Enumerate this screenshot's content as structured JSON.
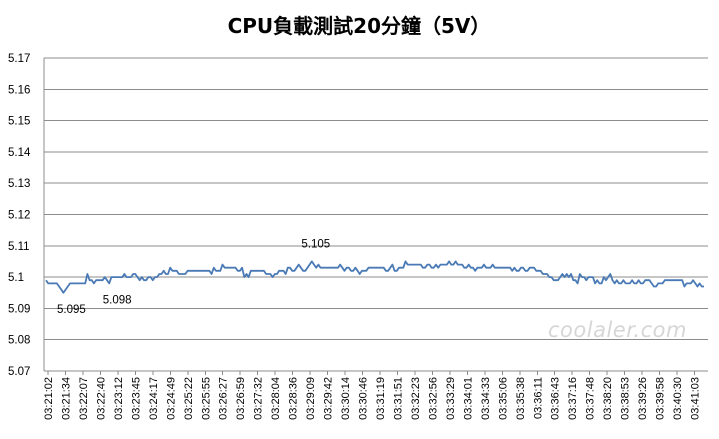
{
  "chart_data": {
    "type": "line",
    "title": "CPU負載測試20分鐘（5V）",
    "xlabel": "",
    "ylabel": "",
    "ylim": [
      5.07,
      5.17
    ],
    "yticks": [
      "5.07",
      "5.08",
      "5.09",
      "5.1",
      "5.11",
      "5.12",
      "5.13",
      "5.14",
      "5.15",
      "5.16",
      "5.17"
    ],
    "grid": "horizontal",
    "legend": "none",
    "line_color": "#4a7ab5",
    "x_tick_labels": [
      "03:21:02",
      "03:21:34",
      "03:22:07",
      "03:22:40",
      "03:23:12",
      "03:23:45",
      "03:24:17",
      "03:24:49",
      "03:25:22",
      "03:25:55",
      "03:26:27",
      "03:26:59",
      "03:27:32",
      "03:28:04",
      "03:28:36",
      "03:29:09",
      "03:29:42",
      "03:30:14",
      "03:30:46",
      "03:31:19",
      "03:31:51",
      "03:32:23",
      "03:32:56",
      "03:33:29",
      "03:34:01",
      "03:34:33",
      "03:35:06",
      "03:35:38",
      "03:36:11",
      "03:36:43",
      "03:37:16",
      "03:37:48",
      "03:38:20",
      "03:38:53",
      "03:39:26",
      "03:39:58",
      "03:40:30",
      "03:41:03"
    ],
    "annotations": [
      {
        "text": "5.095",
        "at_index": 8
      },
      {
        "text": "5.098",
        "at_index": 29
      },
      {
        "text": "5.105",
        "at_index": 122
      }
    ],
    "series": [
      {
        "values": [
          5.099,
          5.098,
          5.098,
          5.098,
          5.098,
          5.098,
          5.097,
          5.096,
          5.095,
          5.096,
          5.097,
          5.098,
          5.098,
          5.098,
          5.098,
          5.098,
          5.098,
          5.098,
          5.098,
          5.101,
          5.099,
          5.099,
          5.098,
          5.099,
          5.099,
          5.099,
          5.099,
          5.1,
          5.099,
          5.098,
          5.1,
          5.1,
          5.1,
          5.1,
          5.1,
          5.1,
          5.101,
          5.1,
          5.1,
          5.1,
          5.101,
          5.101,
          5.1,
          5.099,
          5.1,
          5.099,
          5.099,
          5.1,
          5.1,
          5.099,
          5.1,
          5.1,
          5.101,
          5.101,
          5.102,
          5.101,
          5.101,
          5.103,
          5.102,
          5.102,
          5.102,
          5.101,
          5.101,
          5.101,
          5.101,
          5.102,
          5.102,
          5.102,
          5.102,
          5.102,
          5.102,
          5.102,
          5.102,
          5.102,
          5.102,
          5.102,
          5.101,
          5.103,
          5.102,
          5.102,
          5.102,
          5.104,
          5.103,
          5.103,
          5.103,
          5.103,
          5.103,
          5.103,
          5.102,
          5.102,
          5.103,
          5.1,
          5.101,
          5.1,
          5.102,
          5.102,
          5.102,
          5.102,
          5.102,
          5.102,
          5.102,
          5.101,
          5.101,
          5.101,
          5.1,
          5.101,
          5.101,
          5.102,
          5.102,
          5.102,
          5.101,
          5.103,
          5.103,
          5.102,
          5.102,
          5.103,
          5.104,
          5.103,
          5.102,
          5.102,
          5.103,
          5.104,
          5.105,
          5.104,
          5.103,
          5.104,
          5.103,
          5.103,
          5.103,
          5.103,
          5.103,
          5.103,
          5.103,
          5.103,
          5.103,
          5.104,
          5.103,
          5.102,
          5.103,
          5.103,
          5.102,
          5.102,
          5.103,
          5.102,
          5.101,
          5.102,
          5.102,
          5.102,
          5.103,
          5.103,
          5.103,
          5.103,
          5.103,
          5.103,
          5.103,
          5.103,
          5.102,
          5.102,
          5.103,
          5.104,
          5.102,
          5.102,
          5.103,
          5.103,
          5.103,
          5.105,
          5.104,
          5.104,
          5.104,
          5.104,
          5.104,
          5.104,
          5.104,
          5.103,
          5.103,
          5.104,
          5.104,
          5.103,
          5.103,
          5.104,
          5.103,
          5.104,
          5.104,
          5.104,
          5.104,
          5.105,
          5.104,
          5.104,
          5.105,
          5.104,
          5.104,
          5.104,
          5.103,
          5.103,
          5.104,
          5.103,
          5.103,
          5.102,
          5.103,
          5.103,
          5.103,
          5.104,
          5.103,
          5.103,
          5.103,
          5.104,
          5.103,
          5.103,
          5.103,
          5.103,
          5.103,
          5.103,
          5.103,
          5.103,
          5.102,
          5.103,
          5.102,
          5.102,
          5.103,
          5.103,
          5.102,
          5.102,
          5.103,
          5.103,
          5.103,
          5.102,
          5.102,
          5.102,
          5.101,
          5.101,
          5.101,
          5.1,
          5.1,
          5.099,
          5.099,
          5.099,
          5.1,
          5.101,
          5.1,
          5.101,
          5.1,
          5.101,
          5.099,
          5.099,
          5.098,
          5.101,
          5.1,
          5.1,
          5.099,
          5.1,
          5.1,
          5.1,
          5.098,
          5.099,
          5.098,
          5.098,
          5.1,
          5.099,
          5.1,
          5.101,
          5.099,
          5.098,
          5.099,
          5.098,
          5.098,
          5.099,
          5.098,
          5.098,
          5.098,
          5.099,
          5.098,
          5.098,
          5.099,
          5.098,
          5.098,
          5.099,
          5.099,
          5.099,
          5.098,
          5.097,
          5.097,
          5.098,
          5.098,
          5.098,
          5.099,
          5.099,
          5.099,
          5.099,
          5.099,
          5.099,
          5.099,
          5.099,
          5.099,
          5.097,
          5.098,
          5.098,
          5.098,
          5.099,
          5.098,
          5.097,
          5.098,
          5.097,
          5.097
        ]
      }
    ]
  },
  "watermark": {
    "text": "coolaler.com"
  }
}
